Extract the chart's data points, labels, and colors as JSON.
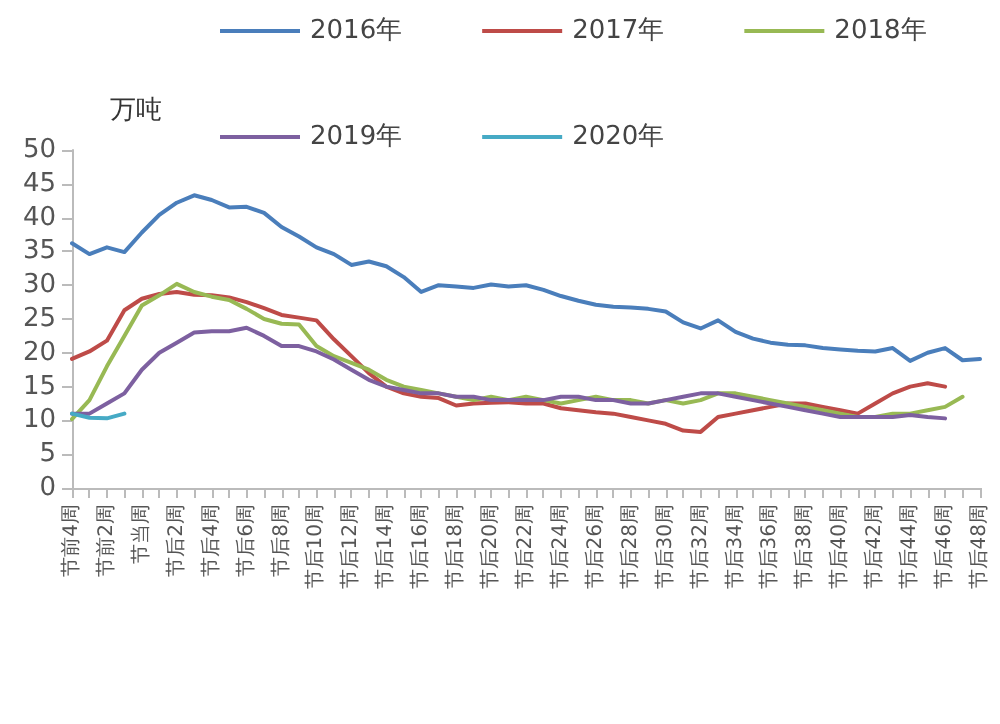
{
  "chart_data": {
    "type": "line",
    "ylabel": "万吨",
    "categories": [
      "节前4周",
      null,
      "节前2周",
      null,
      "节当周",
      null,
      "节后2周",
      null,
      "节后4周",
      null,
      "节后6周",
      null,
      "节后8周",
      null,
      "节后10周",
      null,
      "节后12周",
      null,
      "节后14周",
      null,
      "节后16周",
      null,
      "节后18周",
      null,
      "节后20周",
      null,
      "节后22周",
      null,
      "节后24周",
      null,
      "节后26周",
      null,
      "节后28周",
      null,
      "节后30周",
      null,
      "节后32周",
      null,
      "节后34周",
      null,
      "节后36周",
      null,
      "节后38周",
      null,
      "节后40周",
      null,
      "节后42周",
      null,
      "节后44周",
      null,
      "节后46周",
      null,
      "节后48周"
    ],
    "series": [
      {
        "name": "2016年",
        "color": "#4a7ebb",
        "values": [
          36.2,
          34.6,
          35.6,
          34.9,
          37.8,
          40.4,
          42.2,
          43.3,
          42.6,
          41.5,
          41.6,
          40.7,
          38.6,
          37.2,
          35.6,
          34.6,
          33,
          33.5,
          32.8,
          31.2,
          29,
          30,
          29.8,
          29.6,
          30.1,
          29.8,
          30,
          29.3,
          28.4,
          27.7,
          27.1,
          26.8,
          26.7,
          26.5,
          26.1,
          24.5,
          23.6,
          24.8,
          23.1,
          22.1,
          21.5,
          21.2,
          21.1,
          20.7,
          20.5,
          20.3,
          20.2,
          20.7,
          18.8,
          20,
          20.7,
          18.9,
          19.1
        ]
      },
      {
        "name": "2017年",
        "color": "#be4b48",
        "values": [
          19.1,
          20.2,
          21.8,
          26.3,
          28,
          28.7,
          29,
          28.6,
          28.5,
          28.2,
          27.5,
          26.6,
          25.6,
          25.2,
          24.8,
          22,
          19.5,
          17,
          15,
          14,
          13.5,
          13.3,
          12.2,
          12.5,
          12.6,
          12.7,
          12.5,
          12.5,
          11.8,
          11.5,
          11.2,
          11,
          10.5,
          10,
          9.5,
          8.5,
          8.3,
          10.5,
          11,
          11.5,
          12,
          12.5,
          12.5,
          12,
          11.5,
          11,
          12.5,
          14,
          15,
          15.5,
          15,
          null,
          null
        ]
      },
      {
        "name": "2018年",
        "color": "#98b954",
        "values": [
          10.2,
          13,
          18,
          22.5,
          27,
          28.5,
          30.2,
          29,
          28.3,
          27.8,
          26.5,
          25,
          24.3,
          24.2,
          21,
          19.5,
          18.5,
          17.5,
          16,
          15,
          14.5,
          14,
          13.5,
          13,
          13.5,
          13,
          13.5,
          13,
          12.5,
          13,
          13.5,
          13,
          13,
          12.5,
          13,
          12.5,
          13,
          14,
          14,
          13.5,
          13,
          12.5,
          12,
          11.5,
          11,
          10.5,
          10.5,
          11,
          11,
          11.5,
          12,
          13.5,
          null
        ]
      },
      {
        "name": "2019年",
        "color": "#7d60a0",
        "values": [
          11,
          11,
          12.5,
          14,
          17.5,
          20,
          21.5,
          23,
          23.2,
          23.2,
          23.7,
          22.5,
          21,
          21,
          20.2,
          19,
          17.5,
          16,
          15,
          14.5,
          14,
          14,
          13.5,
          13.5,
          13,
          13,
          13,
          13,
          13.5,
          13.5,
          13,
          13,
          12.5,
          12.5,
          13,
          13.5,
          14,
          14,
          13.5,
          13,
          12.5,
          12,
          11.5,
          11,
          10.5,
          10.5,
          10.5,
          10.5,
          10.8,
          10.5,
          10.3,
          null,
          null
        ]
      },
      {
        "name": "2020年",
        "color": "#46aac5",
        "values": [
          11,
          10.4,
          10.3,
          11,
          null,
          null,
          null,
          null,
          null,
          null,
          null,
          null,
          null,
          null,
          null,
          null,
          null,
          null,
          null,
          null,
          null,
          null,
          null,
          null,
          null,
          null,
          null,
          null,
          null,
          null,
          null,
          null,
          null,
          null,
          null,
          null,
          null,
          null,
          null,
          null,
          null,
          null,
          null,
          null,
          null,
          null,
          null,
          null,
          null,
          null,
          null,
          null,
          null
        ]
      }
    ],
    "ylim": [
      0,
      50
    ],
    "yticks": [
      0,
      5,
      10,
      15,
      20,
      25,
      30,
      35,
      40,
      45,
      50
    ],
    "grid": false,
    "legend": "top",
    "marker": "none",
    "line_style": "solid"
  }
}
